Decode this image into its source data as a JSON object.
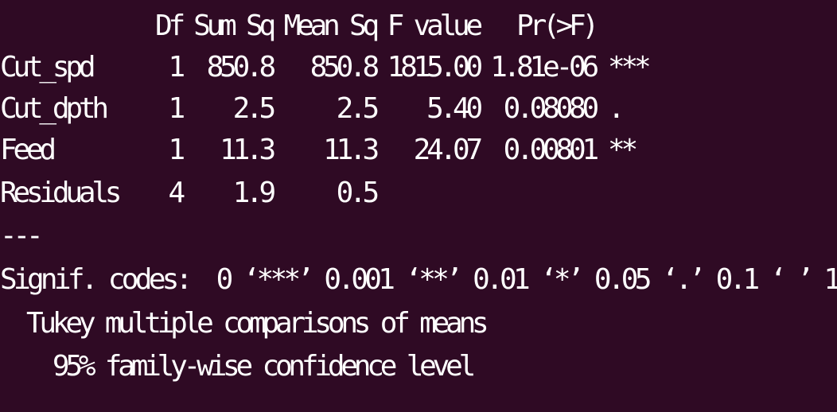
{
  "terminal": {
    "background_color": "#2f0a24",
    "text_color": "#ffffff",
    "header": {
      "df": "Df",
      "sum_sq": "Sum Sq",
      "mean_sq": "Mean Sq",
      "f_value": "F value",
      "pr_f": "Pr(>F)"
    },
    "anova_rows": [
      {
        "term": "Cut_spd",
        "df": "1",
        "sum_sq": "850.8",
        "mean_sq": "850.8",
        "f_value": "1815.00",
        "pr_f": "1.81e-06",
        "signif": "***"
      },
      {
        "term": "Cut_dpth",
        "df": "1",
        "sum_sq": "2.5",
        "mean_sq": "2.5",
        "f_value": "5.40",
        "pr_f": "0.08080",
        "signif": "."
      },
      {
        "term": "Feed",
        "df": "1",
        "sum_sq": "11.3",
        "mean_sq": "11.3",
        "f_value": "24.07",
        "pr_f": "0.00801",
        "signif": "**"
      },
      {
        "term": "Residuals",
        "df": "4",
        "sum_sq": "1.9",
        "mean_sq": "0.5",
        "f_value": "",
        "pr_f": "",
        "signif": ""
      }
    ],
    "separator": "---",
    "signif_codes": "Signif. codes:  0 ‘***’ 0.001 ‘**’ 0.01 ‘*’ 0.05 ‘.’ 0.1 ‘ ’ 1",
    "tukey_title": "  Tukey multiple comparisons of means",
    "tukey_level": "    95% family-wise confidence level"
  }
}
